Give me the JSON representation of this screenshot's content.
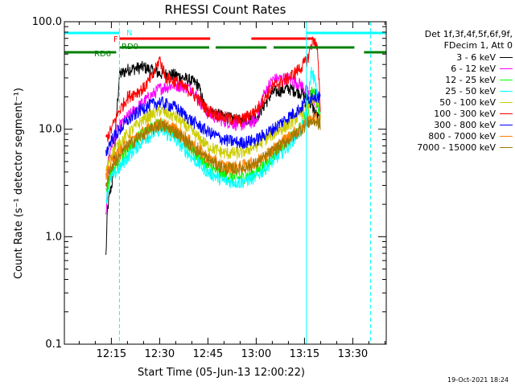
{
  "chart_data": {
    "type": "line",
    "title": "RHESSI Count Rates",
    "xlabel": "Start Time (05-Jun-13 12:00:22)",
    "ylabel": "Count Rate (s⁻¹ detector segment⁻¹)",
    "yscale": "log",
    "ylim": [
      0.1,
      100.0
    ],
    "yticks": [
      "0.1",
      "1.0",
      "10.0",
      "100.0"
    ],
    "xlim_minutes": [
      0.4,
      100.4
    ],
    "xticks": [
      {
        "label": "12:15",
        "minute": 15
      },
      {
        "label": "12:30",
        "minute": 30
      },
      {
        "label": "12:45",
        "minute": 45
      },
      {
        "label": "13:00",
        "minute": 60
      },
      {
        "label": "13:15",
        "minute": 75
      },
      {
        "label": "13:30",
        "minute": 90
      }
    ],
    "legend_position": "right, outside plot",
    "legend_header": [
      "Det 1f,3f,4f,5f,6f,9f,",
      "FDecim 1, Att 0"
    ],
    "series": [
      {
        "name": "3 - 6 keV",
        "color": "#000000",
        "x": [
          13.3,
          13.8,
          14.5,
          15.5,
          16.5,
          17.5,
          20,
          25,
          30,
          35,
          40,
          42,
          44,
          47,
          50,
          55,
          60,
          65,
          70,
          74,
          76,
          77,
          79,
          80
        ],
        "y": [
          0.65,
          1.8,
          2.5,
          3.5,
          12,
          32,
          36,
          38,
          33,
          32,
          28,
          26,
          16,
          14,
          13,
          12,
          13,
          22,
          24,
          22,
          19,
          17,
          13,
          12
        ]
      },
      {
        "name": "6 - 12 keV",
        "color": "#ff00ff",
        "x": [
          13.3,
          14,
          15,
          17,
          20,
          25,
          30,
          35,
          40,
          45,
          50,
          55,
          60,
          62,
          65,
          70,
          74,
          76,
          80
        ],
        "y": [
          1.5,
          5,
          7,
          10,
          13,
          18,
          24,
          26,
          24,
          14,
          12,
          11,
          12,
          20,
          29,
          30,
          26,
          22,
          16
        ]
      },
      {
        "name": "12 - 25 keV",
        "color": "#00ff00",
        "x": [
          13.3,
          15,
          20,
          25,
          30,
          35,
          40,
          45,
          50,
          55,
          60,
          65,
          70,
          74,
          76,
          77,
          78,
          80
        ],
        "y": [
          2.5,
          4,
          6.5,
          9.5,
          11.5,
          9,
          6.5,
          4.5,
          3.7,
          3.5,
          4,
          5.5,
          8,
          10.5,
          14,
          22,
          22,
          14
        ]
      },
      {
        "name": "25 - 50 keV",
        "color": "#00ffff",
        "x": [
          13.3,
          15,
          20,
          25,
          30,
          35,
          40,
          45,
          50,
          55,
          60,
          65,
          70,
          74,
          76,
          77,
          78,
          80
        ],
        "y": [
          2.2,
          3.5,
          5.5,
          8,
          10,
          8,
          5.5,
          4,
          3.3,
          3.2,
          3.6,
          5,
          7,
          10,
          16,
          35,
          30,
          14
        ]
      },
      {
        "name": "50 - 100 keV",
        "color": "#cccc00",
        "x": [
          13.3,
          15,
          20,
          25,
          30,
          35,
          40,
          45,
          50,
          55,
          60,
          65,
          70,
          74,
          76,
          78,
          80
        ],
        "y": [
          4,
          6,
          9,
          12.5,
          15,
          13,
          9.5,
          7,
          6,
          6,
          7,
          9,
          11,
          14,
          17,
          19,
          17
        ]
      },
      {
        "name": "100 - 300 keV",
        "color": "#ff0000",
        "x": [
          13.3,
          15,
          17,
          20,
          25,
          28,
          30,
          32,
          35,
          40,
          45,
          50,
          55,
          60,
          65,
          70,
          74,
          76,
          77,
          78,
          79,
          80
        ],
        "y": [
          8,
          10,
          14,
          20,
          24,
          32,
          45,
          30,
          28,
          22,
          15,
          13,
          12,
          15,
          25,
          30,
          38,
          45,
          60,
          70,
          55,
          14
        ]
      },
      {
        "name": "300 - 800 keV",
        "color": "#0000ff",
        "x": [
          13.3,
          15,
          20,
          25,
          30,
          35,
          40,
          45,
          50,
          55,
          60,
          65,
          70,
          74,
          76,
          78,
          80
        ],
        "y": [
          6,
          8,
          12,
          16,
          18,
          16,
          12,
          9.5,
          8,
          7.5,
          8,
          10,
          13,
          16,
          19,
          21,
          20
        ]
      },
      {
        "name": "800 - 7000 keV",
        "color": "#ff8000",
        "x": [
          13.3,
          15,
          20,
          25,
          30,
          35,
          40,
          45,
          50,
          55,
          60,
          65,
          70,
          74,
          76,
          78,
          80
        ],
        "y": [
          3.5,
          5,
          7.5,
          9.5,
          11.5,
          10,
          7.5,
          5.5,
          4.5,
          4.5,
          5,
          6.5,
          8.5,
          10.5,
          12,
          13,
          12
        ]
      },
      {
        "name": "7000 - 15000 keV",
        "color": "#a07800",
        "x": [
          13.3,
          15,
          20,
          25,
          30,
          35,
          40,
          45,
          50,
          55,
          60,
          65,
          70,
          74,
          76,
          78,
          80
        ],
        "y": [
          3,
          4.5,
          7,
          9,
          11,
          9.5,
          7,
          5.2,
          4.3,
          4.3,
          4.8,
          6.2,
          8,
          10,
          11.5,
          12,
          11
        ]
      }
    ],
    "annotations": [
      {
        "label": "N",
        "color": "#00ffff"
      },
      {
        "label": "F",
        "color": "#ff0000"
      },
      {
        "label": "RD0",
        "color": "#008000"
      },
      {
        "label": "RD6",
        "color": "#008000"
      }
    ],
    "attenuator_bars": [
      {
        "label": "N",
        "color": "#00ffff",
        "segments": [
          [
            0.4,
            17.5
          ],
          [
            75.6,
            100.4
          ]
        ]
      },
      {
        "label": "F",
        "color": "#ff0000",
        "segments": [
          [
            17.5,
            45.7
          ],
          [
            58.5,
            77.8
          ]
        ]
      },
      {
        "label": "RD0",
        "color": "#008000",
        "segments": [
          [
            17.5,
            45.4
          ],
          [
            47.4,
            63.2
          ],
          [
            65.4,
            90.5
          ]
        ]
      },
      {
        "label": "RD6",
        "color": "#008000",
        "segments": [
          [
            0.4,
            16.5
          ],
          [
            93.5,
            100.4
          ]
        ]
      }
    ],
    "vertical_lines": [
      {
        "minute": 0.4,
        "color": "#00ffff",
        "style": "solid"
      },
      {
        "minute": 17.5,
        "color": "#00ffff",
        "style": "dashed"
      },
      {
        "minute": 75.6,
        "color": "#00ffff",
        "style": "solid"
      },
      {
        "minute": 95.5,
        "color": "#00ffff",
        "style": "dashed"
      }
    ]
  },
  "footer_date": "19-Oct-2021 18:24"
}
